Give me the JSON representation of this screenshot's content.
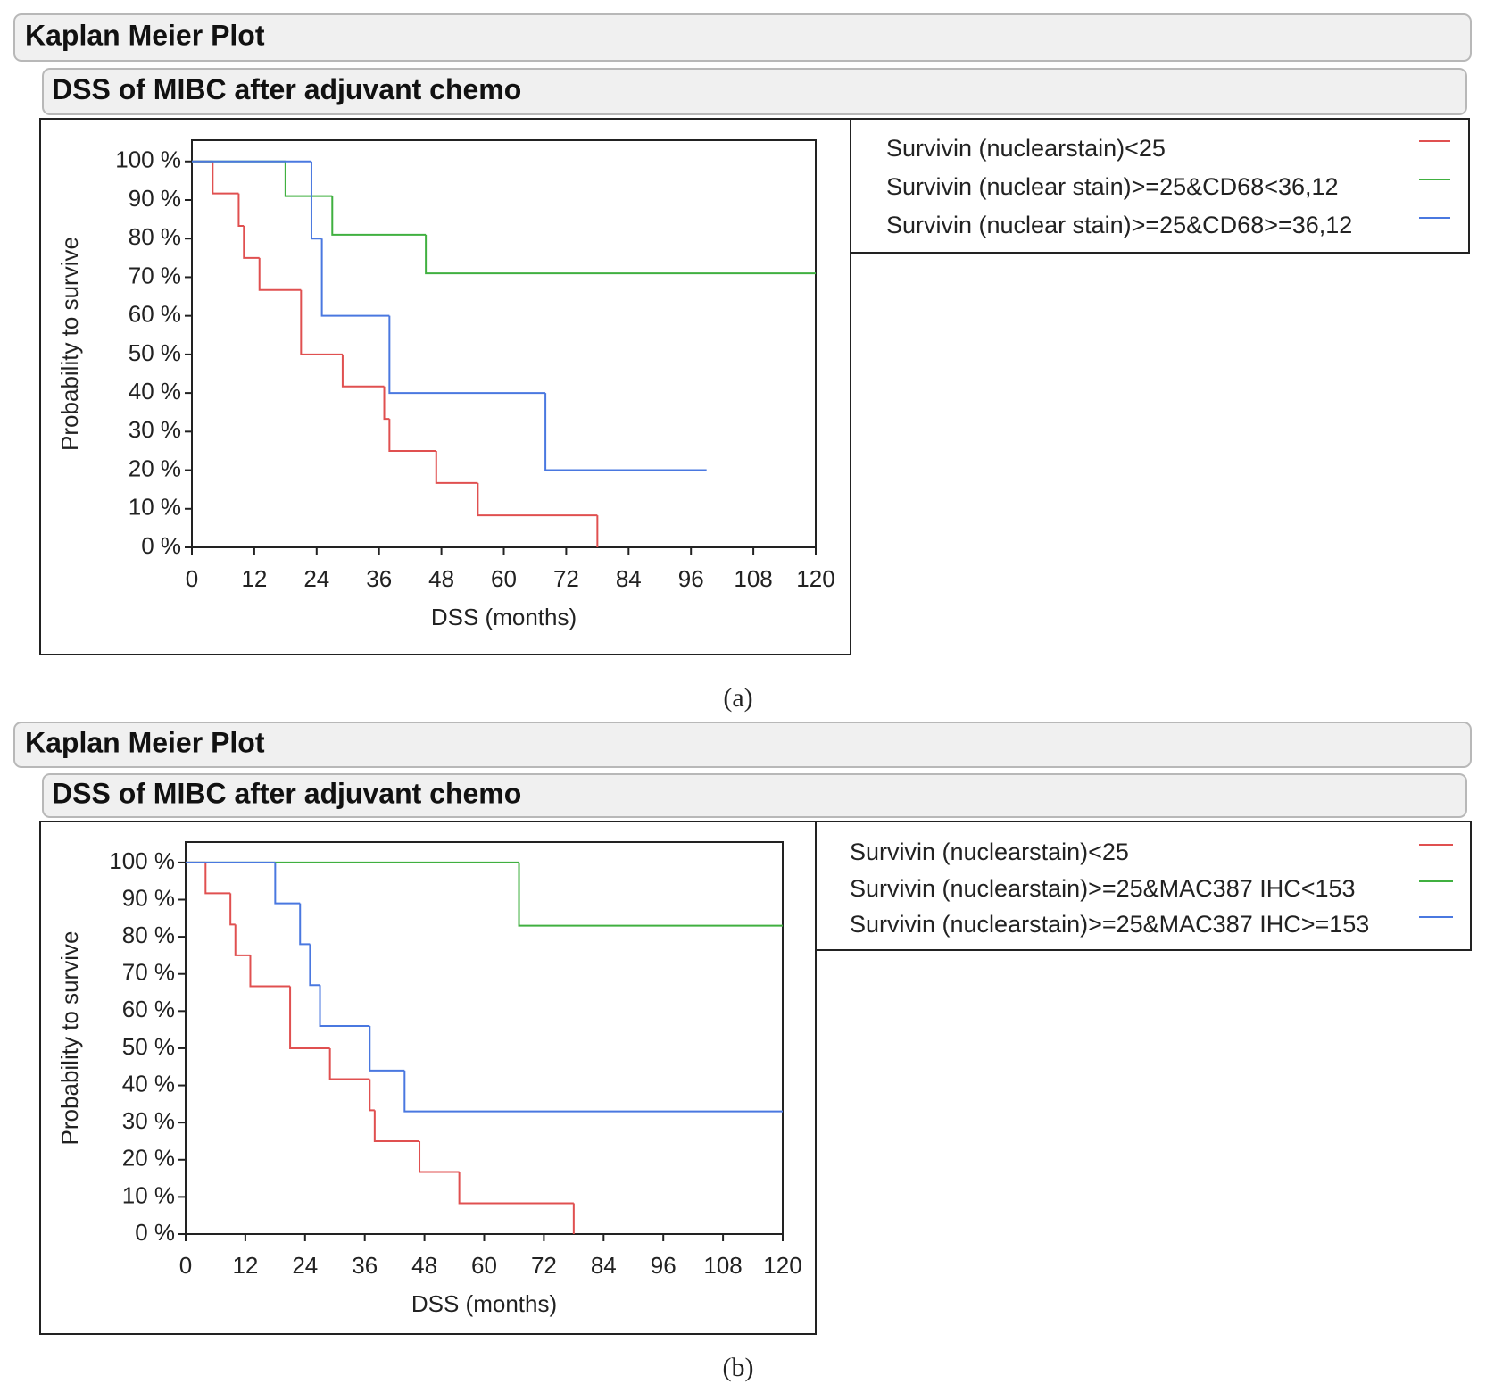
{
  "chart_data": [
    {
      "type": "line",
      "step": "post",
      "title": "Kaplan Meier Plot",
      "subtitle": "DSS of MIBC after adjuvant chemo",
      "x_label": "DSS (months)",
      "y_label": "Probability to survive",
      "caption": "(a)",
      "xlim": [
        0,
        120
      ],
      "xticks": [
        0,
        12,
        24,
        36,
        48,
        60,
        72,
        84,
        96,
        108,
        120
      ],
      "ylim": [
        0,
        105.5
      ],
      "yticks": [
        {
          "value": 0,
          "label": "0 %"
        },
        {
          "value": 10,
          "label": "10 %"
        },
        {
          "value": 20,
          "label": "20 %"
        },
        {
          "value": 30,
          "label": "30 %"
        },
        {
          "value": 40,
          "label": "40 %"
        },
        {
          "value": 50,
          "label": "50 %"
        },
        {
          "value": 60,
          "label": "60 %"
        },
        {
          "value": 70,
          "label": "70 %"
        },
        {
          "value": 80,
          "label": "80 %"
        },
        {
          "value": 90,
          "label": "90 %"
        },
        {
          "value": 100,
          "label": "100 %"
        }
      ],
      "series": [
        {
          "name": "Survivin (nuclearstain)<25",
          "color": "#e05050",
          "x": [
            0,
            4,
            9,
            10,
            13,
            21,
            29,
            37,
            38,
            47,
            55,
            78
          ],
          "values": [
            100,
            91.7,
            83.3,
            75,
            66.7,
            50,
            41.7,
            33.3,
            25,
            16.7,
            8.3,
            0
          ]
        },
        {
          "name": "Survivin (nuclear stain)>=25&CD68<36,12",
          "color": "#40b040",
          "x": [
            0,
            18,
            27,
            45,
            120
          ],
          "values": [
            100,
            91,
            81,
            71,
            71
          ]
        },
        {
          "name": "Survivin (nuclear stain)>=25&CD68>=36,12",
          "color": "#4a78e0",
          "x": [
            0,
            23,
            25,
            38,
            68,
            99
          ],
          "values": [
            100,
            80,
            60,
            40,
            20,
            20
          ]
        }
      ]
    },
    {
      "type": "line",
      "step": "post",
      "title": "Kaplan Meier Plot",
      "subtitle": "DSS of MIBC after adjuvant chemo",
      "x_label": "DSS (months)",
      "y_label": "Probability to survive",
      "caption": "(b)",
      "xlim": [
        0,
        120
      ],
      "xticks": [
        0,
        12,
        24,
        36,
        48,
        60,
        72,
        84,
        96,
        108,
        120
      ],
      "ylim": [
        0,
        105.5
      ],
      "yticks": [
        {
          "value": 0,
          "label": "0 %"
        },
        {
          "value": 10,
          "label": "10 %"
        },
        {
          "value": 20,
          "label": "20 %"
        },
        {
          "value": 30,
          "label": "30 %"
        },
        {
          "value": 40,
          "label": "40 %"
        },
        {
          "value": 50,
          "label": "50 %"
        },
        {
          "value": 60,
          "label": "60 %"
        },
        {
          "value": 70,
          "label": "70 %"
        },
        {
          "value": 80,
          "label": "80 %"
        },
        {
          "value": 90,
          "label": "90 %"
        },
        {
          "value": 100,
          "label": "100 %"
        }
      ],
      "series": [
        {
          "name": "Survivin (nuclearstain)<25",
          "color": "#e05050",
          "x": [
            0,
            4,
            9,
            10,
            13,
            21,
            29,
            37,
            38,
            47,
            55,
            78
          ],
          "values": [
            100,
            91.7,
            83.3,
            75,
            66.7,
            50,
            41.7,
            33.3,
            25,
            16.7,
            8.3,
            0
          ]
        },
        {
          "name": "Survivin (nuclearstain)>=25&MAC387 IHC<153",
          "color": "#40b040",
          "x": [
            0,
            67,
            120
          ],
          "values": [
            100,
            83,
            83
          ]
        },
        {
          "name": "Survivin (nuclearstain)>=25&MAC387 IHC>=153",
          "color": "#4a78e0",
          "x": [
            0,
            18,
            23,
            25,
            27,
            37,
            44,
            120
          ],
          "values": [
            100,
            89,
            78,
            67,
            56,
            44,
            33,
            33
          ]
        }
      ]
    }
  ]
}
